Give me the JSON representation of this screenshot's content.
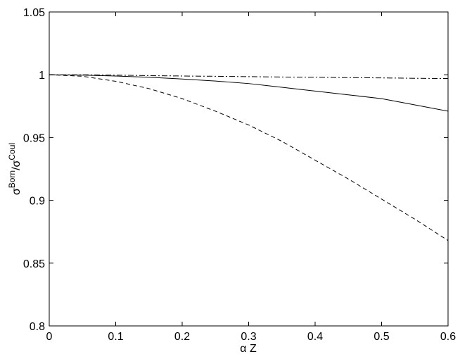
{
  "chart_data": {
    "type": "line",
    "xlabel": "α Z",
    "ylabel": [
      "σ",
      "Born",
      "/σ",
      "Coul"
    ],
    "x": [
      0,
      0.05,
      0.1,
      0.15,
      0.2,
      0.25,
      0.3,
      0.35,
      0.4,
      0.45,
      0.5,
      0.55,
      0.6
    ],
    "series": [
      {
        "color": "#000000",
        "dash": "solid",
        "values": [
          1,
          0.9997,
          0.999,
          0.998,
          0.9966,
          0.995,
          0.993,
          0.99,
          0.987,
          0.984,
          0.981,
          0.976,
          0.971
        ]
      },
      {
        "color": "#000000",
        "dash": "dashed",
        "values": [
          1,
          0.9988,
          0.9948,
          0.989,
          0.981,
          0.971,
          0.96,
          0.947,
          0.932,
          0.917,
          0.901,
          0.885,
          0.868
        ]
      },
      {
        "color": "#000000",
        "dash": "dashdot",
        "values": [
          1,
          1,
          0.9997,
          0.9993,
          0.999,
          0.9988,
          0.9985,
          0.9982,
          0.998,
          0.9977,
          0.9975,
          0.9972,
          0.997
        ]
      }
    ],
    "xlim": [
      0,
      0.6
    ],
    "xticks": [
      0,
      0.1,
      0.2,
      0.3,
      0.4,
      0.5,
      0.6
    ],
    "ylim": [
      0.8,
      1.05
    ],
    "yticks": [
      0.8,
      0.85,
      0.9,
      0.95,
      1,
      1.05
    ],
    "grid": false
  }
}
